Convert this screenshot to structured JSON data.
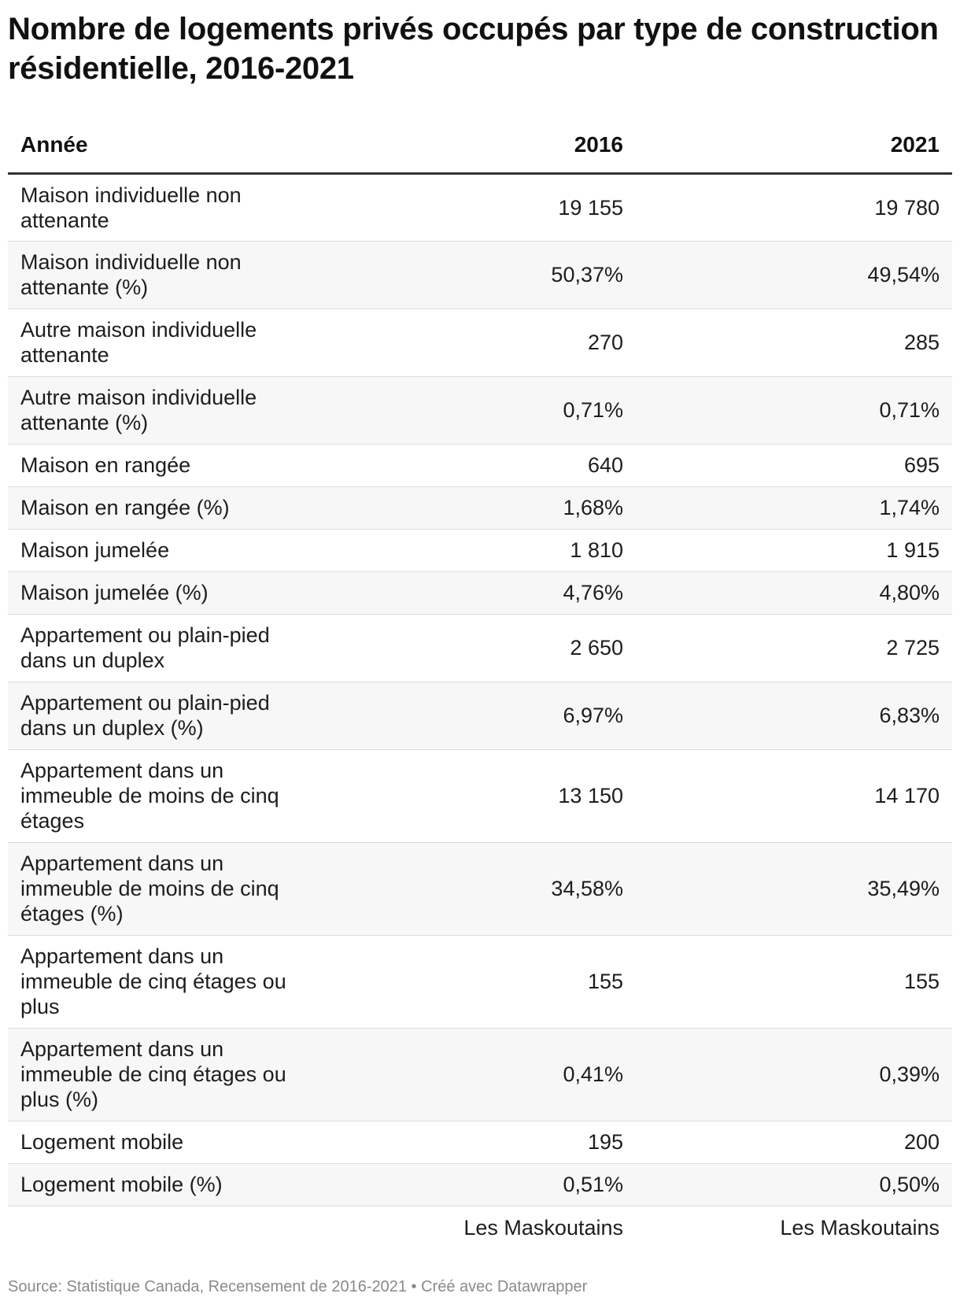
{
  "title": "Nombre de logements privés occupés par type de construction résidentielle, 2016-2021",
  "table": {
    "headers": [
      "Année",
      "2016",
      "2021"
    ],
    "rows": [
      {
        "label": "Maison individuelle non attenante",
        "v2016": "19 155",
        "v2021": "19 780"
      },
      {
        "label": "Maison individuelle non attenante (%)",
        "v2016": "50,37%",
        "v2021": "49,54%"
      },
      {
        "label": "Autre maison individuelle attenante",
        "v2016": "270",
        "v2021": "285"
      },
      {
        "label": "Autre maison individuelle attenante (%)",
        "v2016": "0,71%",
        "v2021": "0,71%"
      },
      {
        "label": "Maison en rangée",
        "v2016": "640",
        "v2021": "695"
      },
      {
        "label": "Maison en rangée (%)",
        "v2016": "1,68%",
        "v2021": "1,74%"
      },
      {
        "label": "Maison jumelée",
        "v2016": "1 810",
        "v2021": "1 915"
      },
      {
        "label": "Maison jumelée (%)",
        "v2016": "4,76%",
        "v2021": "4,80%"
      },
      {
        "label": "Appartement ou plain-pied dans un duplex",
        "v2016": "2 650",
        "v2021": "2 725"
      },
      {
        "label": "Appartement ou plain-pied dans un duplex (%)",
        "v2016": "6,97%",
        "v2021": "6,83%"
      },
      {
        "label": "Appartement dans un immeuble de moins de cinq étages",
        "v2016": "13 150",
        "v2021": "14 170"
      },
      {
        "label": "Appartement dans un immeuble de moins de cinq étages (%)",
        "v2016": "34,58%",
        "v2021": "35,49%"
      },
      {
        "label": "Appartement dans un immeuble de cinq étages ou plus",
        "v2016": "155",
        "v2021": "155"
      },
      {
        "label": "Appartement dans un immeuble de cinq étages ou plus (%)",
        "v2016": "0,41%",
        "v2021": "0,39%"
      },
      {
        "label": "Logement mobile",
        "v2016": "195",
        "v2021": "200"
      },
      {
        "label": "Logement mobile (%)",
        "v2016": "0,51%",
        "v2021": "0,50%"
      }
    ],
    "footer": [
      "Les Maskoutains",
      "Les Maskoutains"
    ]
  },
  "source": "Source: Statistique Canada, Recensement de 2016-2021 • Créé avec Datawrapper"
}
